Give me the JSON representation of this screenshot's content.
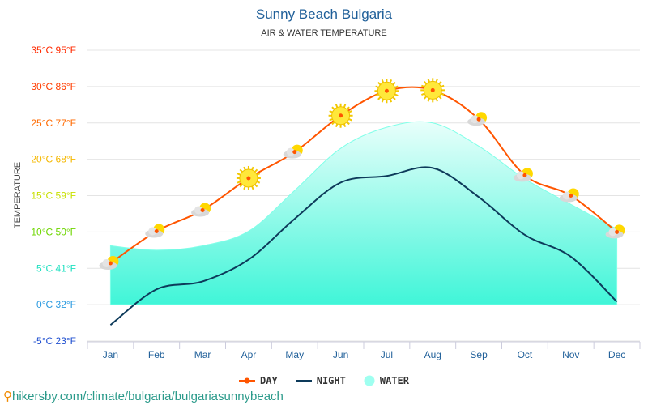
{
  "title": "Sunny Beach Bulgaria",
  "subtitle": "AIR & WATER TEMPERATURE",
  "footer": "hikersby.com/climate/bulgaria/bulgariasunnybeach",
  "chart_data": {
    "type": "line",
    "title": "Sunny Beach Bulgaria",
    "subtitle": "AIR & WATER TEMPERATURE",
    "ylabel": "TEMPERATURE",
    "ylim": [
      -5,
      35
    ],
    "grid": true,
    "legend_placement": "bottom",
    "categories": [
      "Jan",
      "Feb",
      "Mar",
      "Apr",
      "May",
      "Jun",
      "Jul",
      "Aug",
      "Sep",
      "Oct",
      "Nov",
      "Dec"
    ],
    "y_ticks": [
      {
        "v": 35,
        "label": "35°C 95°F",
        "color": "#ff2a00"
      },
      {
        "v": 30,
        "label": "30°C 86°F",
        "color": "#ff3d00"
      },
      {
        "v": 25,
        "label": "25°C 77°F",
        "color": "#ff6a00"
      },
      {
        "v": 20,
        "label": "20°C 68°F",
        "color": "#f5b800"
      },
      {
        "v": 15,
        "label": "15°C 59°F",
        "color": "#c8e000"
      },
      {
        "v": 10,
        "label": "10°C 50°F",
        "color": "#6ed600"
      },
      {
        "v": 5,
        "label": "5°C 41°F",
        "color": "#1fe0c0"
      },
      {
        "v": 0,
        "label": "0°C 32°F",
        "color": "#2a9ae0"
      },
      {
        "v": -5,
        "label": "-5°C 23°F",
        "color": "#1f4fd0"
      }
    ],
    "series": [
      {
        "name": "DAY",
        "color": "#ff5500",
        "values": [
          5.7,
          10.1,
          13.0,
          17.4,
          21.0,
          26.0,
          29.4,
          29.5,
          25.5,
          17.8,
          15.0,
          10.0
        ]
      },
      {
        "name": "NIGHT",
        "color": "#0d3a5a",
        "values": [
          -2.8,
          2.1,
          3.2,
          6.2,
          11.8,
          16.8,
          17.7,
          18.8,
          14.8,
          9.6,
          6.6,
          0.4
        ]
      },
      {
        "name": "WATER",
        "color": "#7fffe8",
        "values": [
          8.1,
          7.5,
          8.1,
          10.1,
          15.7,
          21.5,
          24.4,
          25.0,
          21.8,
          17.3,
          13.8,
          10.4
        ]
      }
    ],
    "weather_icons": [
      "partly-cloudy",
      "partly-cloudy",
      "partly-cloudy",
      "sun",
      "partly-cloudy",
      "sun",
      "sun",
      "sun",
      "partly-cloudy",
      "partly-cloudy",
      "partly-cloudy",
      "partly-cloudy"
    ]
  }
}
